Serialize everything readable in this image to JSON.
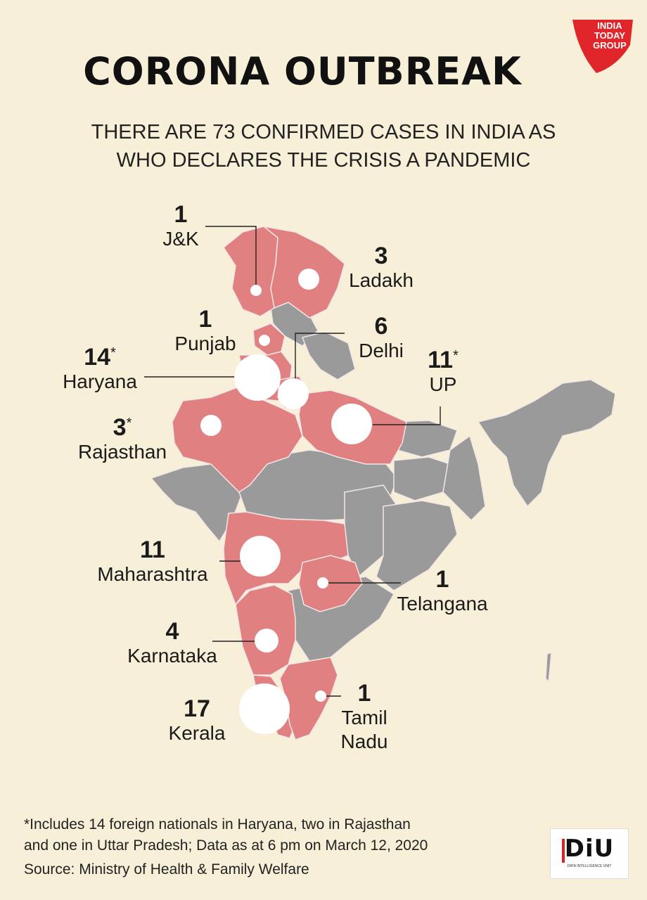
{
  "title": "CORONA OUTBREAK",
  "subtitle": {
    "line1": "THERE ARE 73 CONFIRMED CASES IN INDIA AS",
    "line2": "WHO DECLARES THE CRISIS A PANDEMIC"
  },
  "logo": {
    "line1": "INDIA",
    "line2": "TODAY",
    "line3": "GROUP"
  },
  "colors": {
    "background": "#f8efd8",
    "affected_state": "#e08080",
    "unaffected_state": "#9a9a9a",
    "marker": "#ffffff",
    "logo_red": "#e0262b"
  },
  "states": [
    {
      "key": "jk",
      "count": "1",
      "asterisk": "",
      "name": "J&K"
    },
    {
      "key": "ladakh",
      "count": "3",
      "asterisk": "",
      "name": "Ladakh"
    },
    {
      "key": "punjab",
      "count": "1",
      "asterisk": "",
      "name": "Punjab"
    },
    {
      "key": "delhi",
      "count": "6",
      "asterisk": "",
      "name": "Delhi"
    },
    {
      "key": "haryana",
      "count": "14",
      "asterisk": "*",
      "name": "Haryana"
    },
    {
      "key": "up",
      "count": "11",
      "asterisk": "*",
      "name": "UP"
    },
    {
      "key": "rajasthan",
      "count": "3",
      "asterisk": "*",
      "name": "Rajasthan"
    },
    {
      "key": "maharashtra",
      "count": "11",
      "asterisk": "",
      "name": "Maharashtra"
    },
    {
      "key": "telangana",
      "count": "1",
      "asterisk": "",
      "name": "Telangana"
    },
    {
      "key": "karnataka",
      "count": "4",
      "asterisk": "",
      "name": "Karnataka"
    },
    {
      "key": "kerala",
      "count": "17",
      "asterisk": "",
      "name": "Kerala"
    },
    {
      "key": "tamilnadu",
      "count": "1",
      "asterisk": "",
      "name": "Tamil",
      "name2": "Nadu"
    }
  ],
  "footer": {
    "note1": "*Includes 14 foreign nationals in Haryana, two in Rajasthan",
    "note2": "and one in Uttar Pradesh; Data as at 6 pm on March 12, 2020",
    "source": "Source: Ministry of Health & Family Welfare"
  },
  "badge": {
    "text": "DiU",
    "sub": "DATA INTELLIGENCE UNIT"
  }
}
